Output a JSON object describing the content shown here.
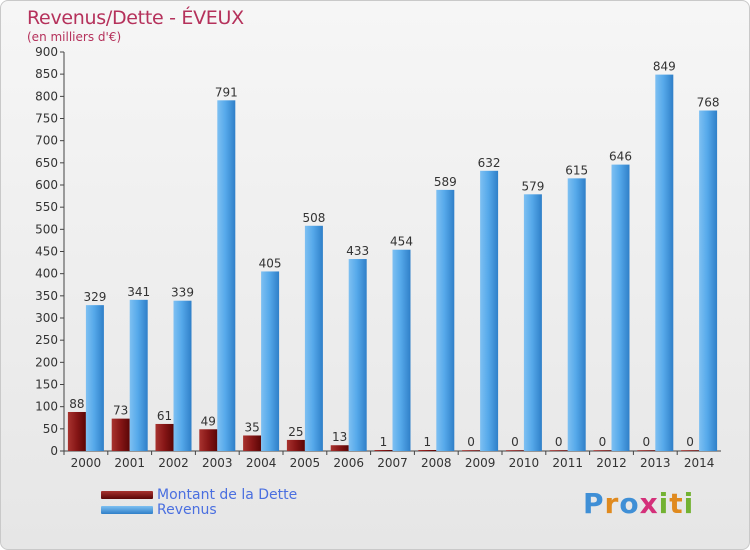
{
  "header": {
    "title": "Revenus/Dette - ÉVEUX",
    "subtitle": "(en milliers d'€)"
  },
  "legend": {
    "items": [
      {
        "label": "Montant de la Dette",
        "color": "#7a0f0f"
      },
      {
        "label": "Revenus",
        "color": "#4a9fe0"
      }
    ]
  },
  "brand": {
    "text": "Proxiti"
  },
  "chart_data": {
    "type": "bar",
    "categories": [
      "2000",
      "2001",
      "2002",
      "2003",
      "2004",
      "2005",
      "2006",
      "2007",
      "2008",
      "2009",
      "2010",
      "2011",
      "2012",
      "2013",
      "2014"
    ],
    "series": [
      {
        "name": "Montant de la Dette",
        "color": "#7a0f0f",
        "values": [
          88,
          73,
          61,
          49,
          35,
          25,
          13,
          1,
          1,
          0,
          0,
          0,
          0,
          0,
          0
        ]
      },
      {
        "name": "Revenus",
        "color": "#4a9fe0",
        "values": [
          329,
          341,
          339,
          791,
          405,
          508,
          433,
          454,
          589,
          632,
          579,
          615,
          646,
          849,
          768
        ]
      }
    ],
    "yticks": [
      0,
      50,
      100,
      150,
      200,
      250,
      300,
      350,
      400,
      450,
      500,
      550,
      600,
      650,
      700,
      750,
      800,
      850,
      900
    ],
    "ylim": [
      0,
      900
    ],
    "grid": false,
    "legend_position": "bottom-left"
  }
}
